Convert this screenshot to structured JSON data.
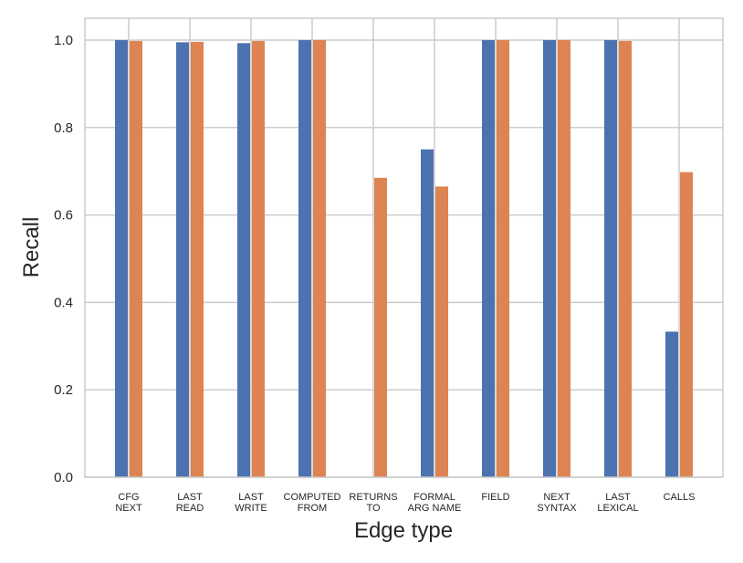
{
  "chart_data": {
    "type": "bar",
    "title": "",
    "xlabel": "Edge type",
    "ylabel": "Recall",
    "ylim": [
      0,
      1.05
    ],
    "yticks": [
      "0.0",
      "0.2",
      "0.4",
      "0.6",
      "0.8",
      "1.0"
    ],
    "ytick_values": [
      0.0,
      0.2,
      0.4,
      0.6,
      0.8,
      1.0
    ],
    "grid": true,
    "legend": "none",
    "categories": [
      [
        "CFG",
        "NEXT"
      ],
      [
        "LAST",
        "READ"
      ],
      [
        "LAST",
        "WRITE"
      ],
      [
        "COMPUTED",
        "FROM"
      ],
      [
        "RETURNS",
        "TO"
      ],
      [
        "FORMAL",
        "ARG NAME"
      ],
      [
        "FIELD"
      ],
      [
        "NEXT",
        "SYNTAX"
      ],
      [
        "LAST",
        "LEXICAL"
      ],
      [
        "CALLS"
      ]
    ],
    "series": [
      {
        "color": "#4c72b0",
        "values": [
          1.0,
          0.995,
          0.993,
          1.0,
          0.0,
          0.75,
          1.0,
          1.0,
          1.0,
          0.333
        ]
      },
      {
        "color": "#dd8452",
        "values": [
          0.998,
          0.996,
          0.998,
          1.0,
          0.685,
          0.665,
          1.0,
          1.0,
          0.998,
          0.698
        ]
      }
    ],
    "colors": {
      "grid": "#cccccc",
      "frame": "#cccccc",
      "text": "#262626"
    }
  }
}
